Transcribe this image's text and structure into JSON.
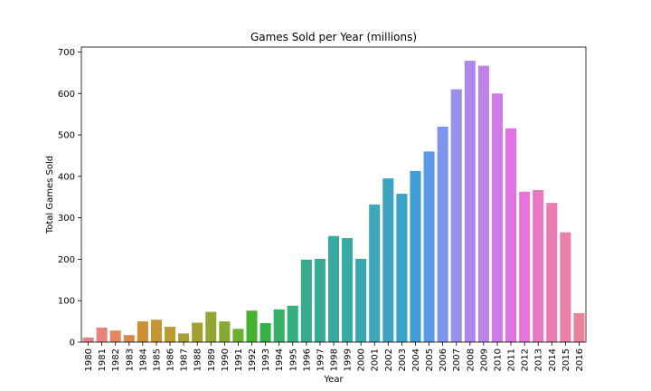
{
  "chart_data": {
    "type": "bar",
    "title": "Games Sold per Year (millions)",
    "xlabel": "Year",
    "ylabel": "Total Games Sold",
    "ylim": [
      0,
      712
    ],
    "yticks": [
      0,
      100,
      200,
      300,
      400,
      500,
      600,
      700
    ],
    "categories": [
      "1980",
      "1981",
      "1982",
      "1983",
      "1984",
      "1985",
      "1986",
      "1987",
      "1988",
      "1989",
      "1990",
      "1991",
      "1992",
      "1993",
      "1994",
      "1995",
      "1996",
      "1997",
      "1998",
      "1999",
      "2000",
      "2001",
      "2002",
      "2003",
      "2004",
      "2005",
      "2006",
      "2007",
      "2008",
      "2009",
      "2010",
      "2011",
      "2012",
      "2013",
      "2014",
      "2015",
      "2016"
    ],
    "values": [
      11,
      35,
      28,
      17,
      50,
      54,
      37,
      21,
      47,
      73,
      50,
      32,
      76,
      46,
      79,
      88,
      199,
      201,
      256,
      251,
      201,
      332,
      395,
      358,
      413,
      460,
      520,
      610,
      679,
      667,
      600,
      516,
      363,
      367,
      336,
      265,
      70
    ],
    "colors": [
      "#e8808a",
      "#e6837b",
      "#e28664",
      "#d58a4a",
      "#cc8f33",
      "#c69532",
      "#b99b32",
      "#a79f31",
      "#a3a131",
      "#94a531",
      "#85aa31",
      "#6cae31",
      "#46b031",
      "#33b046",
      "#34b069",
      "#35ae80",
      "#36ad8c",
      "#37ac95",
      "#38ab9e",
      "#39aaa5",
      "#39a9ad",
      "#3ba7b8",
      "#3ca4c1",
      "#3da2cb",
      "#3e9fd8",
      "#5b9ae6",
      "#7f95ec",
      "#9a8fe9",
      "#ab89e8",
      "#bd83e8",
      "#d07ae8",
      "#e072e6",
      "#e774d6",
      "#e878c5",
      "#e97db6",
      "#e980a9",
      "#e9849b"
    ],
    "grid": false,
    "legend": "none"
  }
}
